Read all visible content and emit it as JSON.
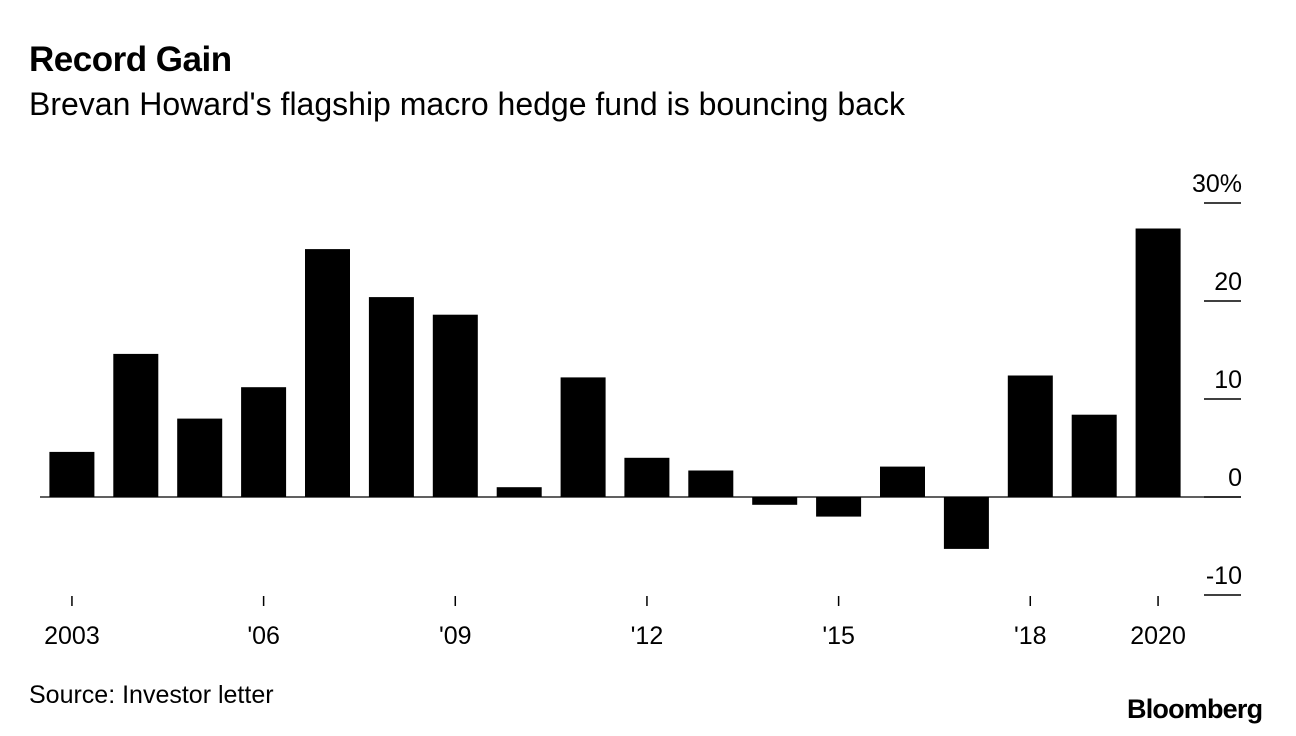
{
  "header": {
    "title": "Record Gain",
    "subtitle": "Brevan Howard's flagship macro hedge fund is bouncing back"
  },
  "footer": {
    "source": "Source: Investor letter",
    "logo": "Bloomberg"
  },
  "colors": {
    "bar": "#000000",
    "background": "#ffffff",
    "text": "#000000"
  },
  "chart_data": {
    "type": "bar",
    "title": "Record Gain",
    "subtitle": "Brevan Howard's flagship macro hedge fund is bouncing back",
    "xlabel": "",
    "ylabel": "",
    "ylim": [
      -10,
      30
    ],
    "grid": false,
    "categories": [
      "2003",
      "2004",
      "2005",
      "2006",
      "2007",
      "2008",
      "2009",
      "2010",
      "2011",
      "2012",
      "2013",
      "2014",
      "2015",
      "2016",
      "2017",
      "2018",
      "2019",
      "2020"
    ],
    "values": [
      4.6,
      14.6,
      8.0,
      11.2,
      25.3,
      20.4,
      18.6,
      1.0,
      12.2,
      4.0,
      2.7,
      -0.8,
      -2.0,
      3.1,
      -5.3,
      12.4,
      8.4,
      27.4
    ],
    "x_tick_labels": [
      {
        "category": "2003",
        "label": "2003"
      },
      {
        "category": "2006",
        "label": "'06"
      },
      {
        "category": "2009",
        "label": "'09"
      },
      {
        "category": "2012",
        "label": "'12"
      },
      {
        "category": "2015",
        "label": "'15"
      },
      {
        "category": "2018",
        "label": "'18"
      },
      {
        "category": "2020",
        "label": "2020"
      }
    ],
    "y_ticks": [
      {
        "value": 30,
        "label": "30%"
      },
      {
        "value": 20,
        "label": "20"
      },
      {
        "value": 10,
        "label": "10"
      },
      {
        "value": 0,
        "label": "0"
      },
      {
        "value": -10,
        "label": "-10"
      }
    ],
    "y_axis_side": "right"
  }
}
